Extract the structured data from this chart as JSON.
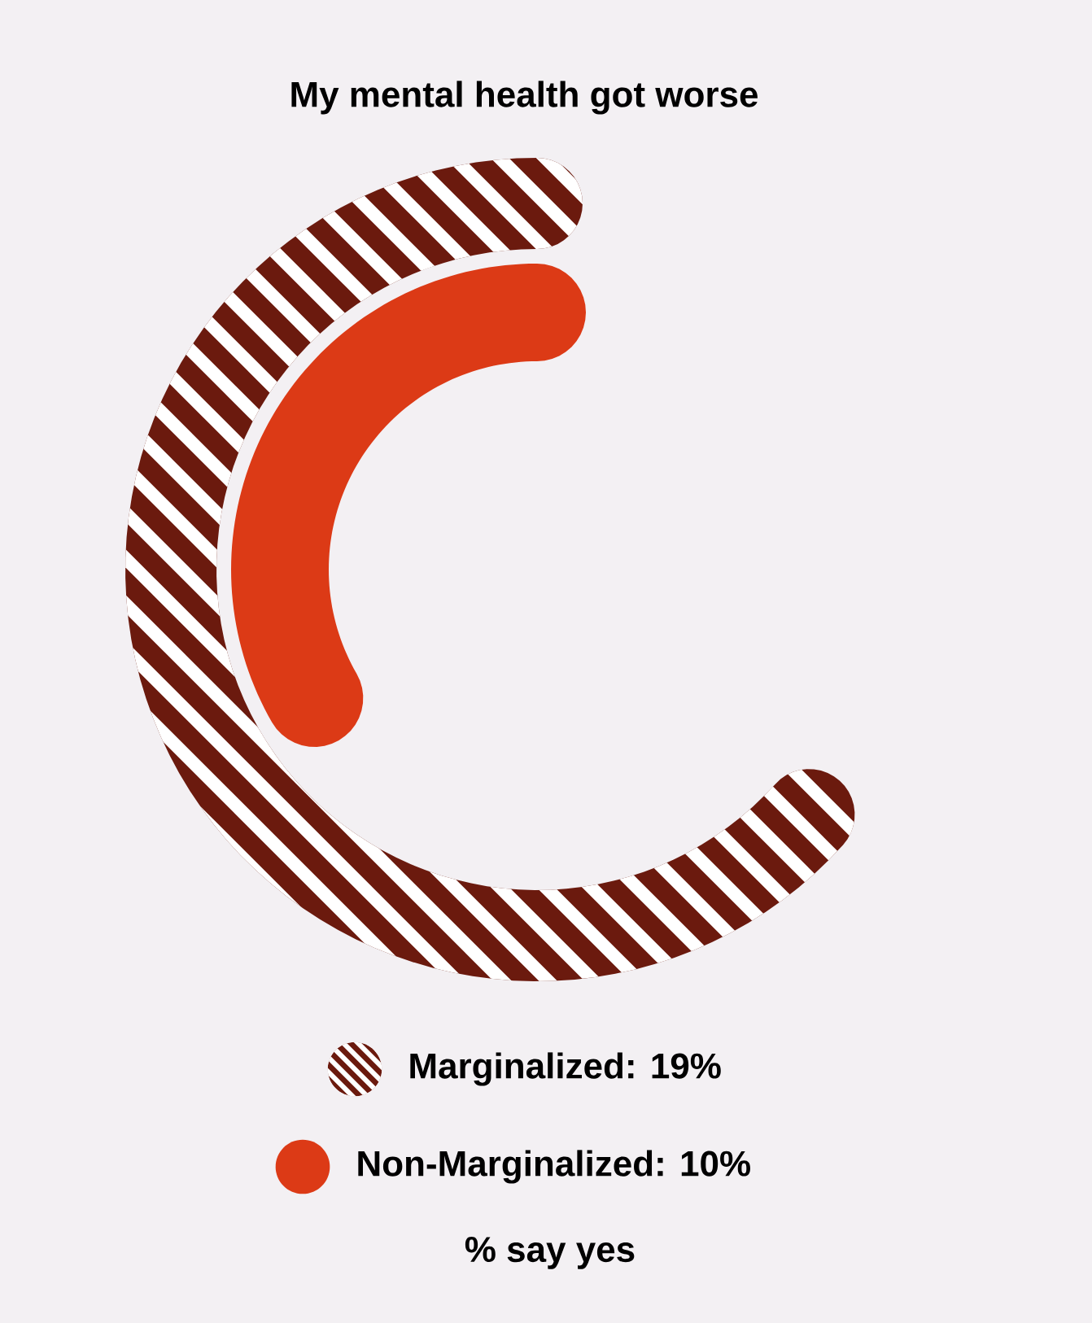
{
  "chart_data": {
    "type": "other",
    "title": "My mental health got worse",
    "values": [
      19,
      10
    ],
    "value_labels": [
      "Marginalized: 19%",
      "Non-Marginalized: 10%"
    ],
    "colors": [
      "#6b1a0e",
      "#dc3a16"
    ],
    "annotations": [
      "% say yes"
    ]
  }
}
